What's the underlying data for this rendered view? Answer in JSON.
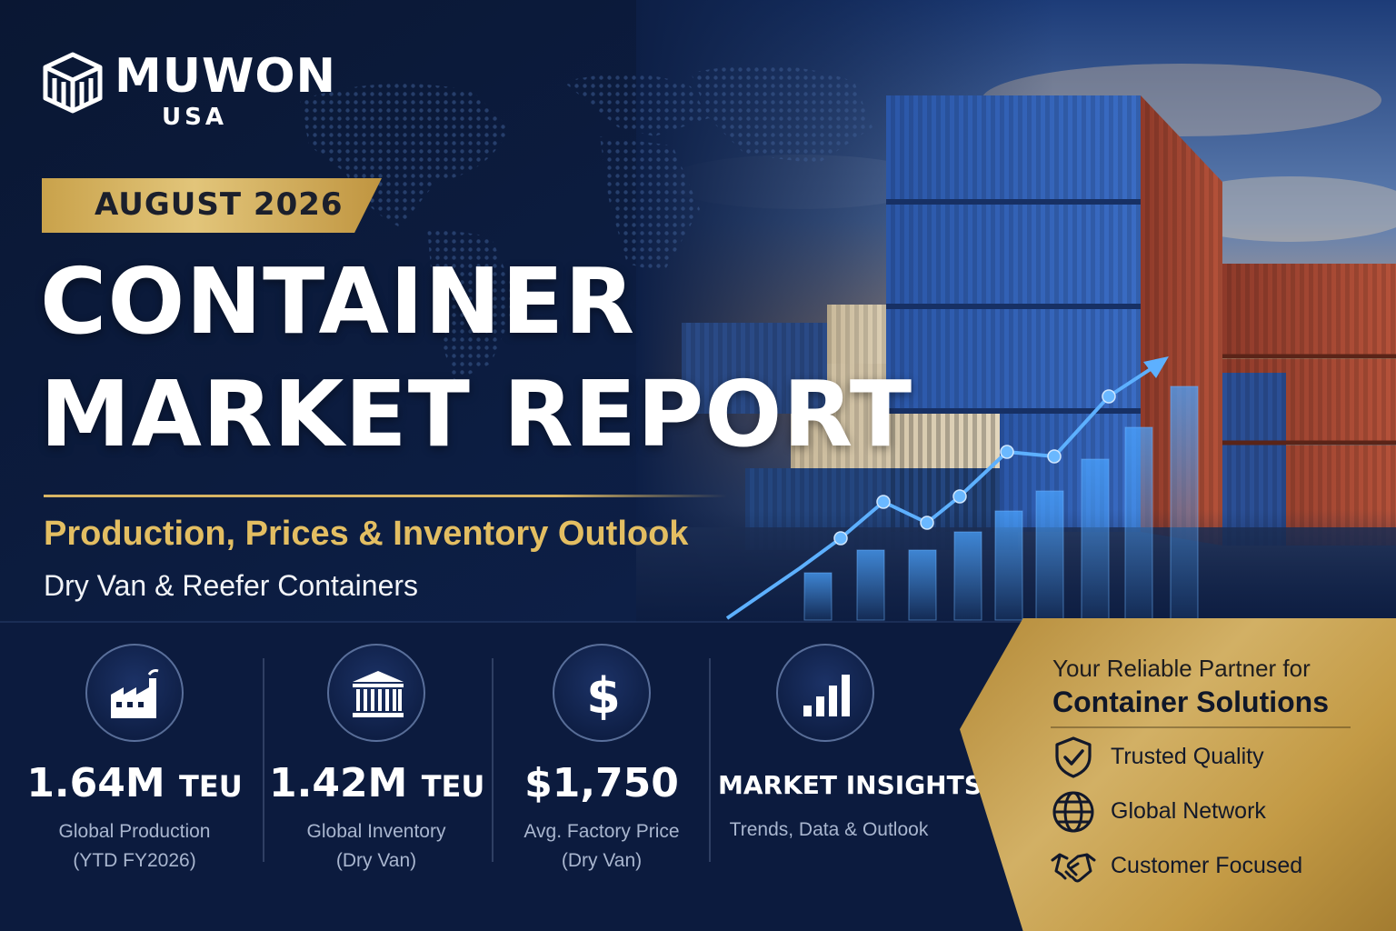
{
  "brand": {
    "name": "MUWON",
    "sub": "USA"
  },
  "badge": {
    "date": "AUGUST 2026"
  },
  "headline": {
    "line1": "CONTAINER",
    "line2": "MARKET REPORT",
    "subtitle": "Production, Prices & Inventory Outlook",
    "subline": "Dry Van & Reefer Containers"
  },
  "stats": [
    {
      "icon": "factory-icon",
      "value": "1.64M",
      "unit": "TEU",
      "label1": "Global Production",
      "label2": "(YTD FY2026)"
    },
    {
      "icon": "warehouse-icon",
      "value": "1.42M",
      "unit": "TEU",
      "label1": "Global Inventory",
      "label2": "(Dry Van)"
    },
    {
      "icon": "dollar-icon",
      "value": "$1,750",
      "unit": "",
      "label1": "Avg. Factory Price",
      "label2": "(Dry Van)"
    },
    {
      "icon": "bar-chart-icon",
      "value": "MARKET INSIGHTS",
      "unit": "",
      "label1": "Trends, Data & Outlook",
      "label2": ""
    }
  ],
  "partner": {
    "tagline": "Your Reliable Partner for",
    "headline": "Container Solutions",
    "features": [
      {
        "icon": "shield-check-icon",
        "label": "Trusted Quality"
      },
      {
        "icon": "globe-icon",
        "label": "Global Network"
      },
      {
        "icon": "handshake-icon",
        "label": "Customer Focused"
      }
    ]
  },
  "colors": {
    "navy": "#0b1a3a",
    "gold": "#d2b065",
    "gold_text": "#e3be62",
    "accent_blue": "#4aa3ff"
  }
}
